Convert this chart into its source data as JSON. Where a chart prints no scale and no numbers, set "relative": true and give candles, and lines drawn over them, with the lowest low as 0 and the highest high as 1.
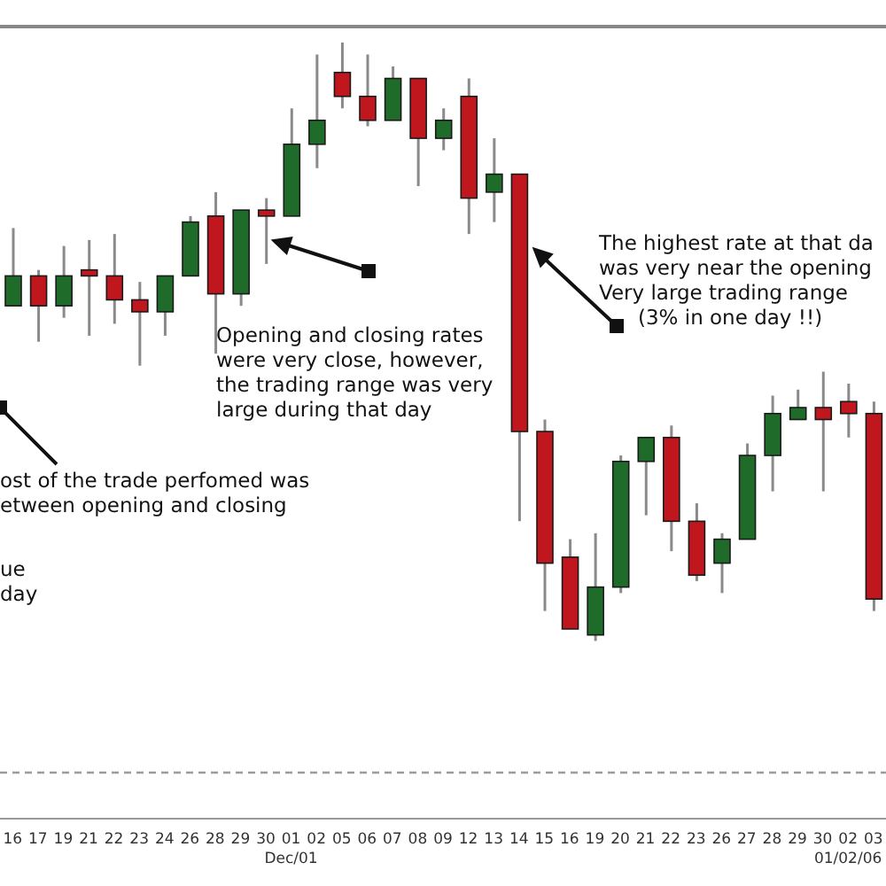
{
  "chart_data": {
    "type": "candlestick",
    "relative": true,
    "categories": [
      "16",
      "17",
      "19",
      "21",
      "22",
      "23",
      "24",
      "26",
      "28",
      "29",
      "30",
      "01",
      "02",
      "05",
      "06",
      "07",
      "08",
      "09",
      "12",
      "13",
      "14",
      "15",
      "16",
      "19",
      "20",
      "21",
      "22",
      "23",
      "26",
      "27",
      "28",
      "29",
      "30",
      "02",
      "03"
    ],
    "ohlc": [
      [
        0.56,
        0.69,
        0.56,
        0.61
      ],
      [
        0.61,
        0.62,
        0.5,
        0.56
      ],
      [
        0.56,
        0.66,
        0.54,
        0.61
      ],
      [
        0.62,
        0.67,
        0.51,
        0.61
      ],
      [
        0.61,
        0.68,
        0.53,
        0.57
      ],
      [
        0.57,
        0.6,
        0.46,
        0.55
      ],
      [
        0.55,
        0.61,
        0.51,
        0.61
      ],
      [
        0.61,
        0.71,
        0.61,
        0.7
      ],
      [
        0.71,
        0.75,
        0.48,
        0.58
      ],
      [
        0.58,
        0.72,
        0.56,
        0.72
      ],
      [
        0.72,
        0.74,
        0.63,
        0.71
      ],
      [
        0.71,
        0.89,
        0.71,
        0.83
      ],
      [
        0.83,
        0.98,
        0.79,
        0.87
      ],
      [
        0.95,
        1.0,
        0.89,
        0.91
      ],
      [
        0.91,
        0.98,
        0.86,
        0.87
      ],
      [
        0.87,
        0.96,
        0.87,
        0.94
      ],
      [
        0.94,
        0.94,
        0.76,
        0.84
      ],
      [
        0.84,
        0.89,
        0.82,
        0.87
      ],
      [
        0.91,
        0.94,
        0.68,
        0.74
      ],
      [
        0.75,
        0.84,
        0.7,
        0.78
      ],
      [
        0.78,
        0.78,
        0.2,
        0.35
      ],
      [
        0.35,
        0.37,
        0.05,
        0.13
      ],
      [
        0.14,
        0.17,
        0.02,
        0.02
      ],
      [
        0.01,
        0.18,
        0,
        0.09
      ],
      [
        0.09,
        0.31,
        0.08,
        0.3
      ],
      [
        0.3,
        0.34,
        0.21,
        0.34
      ],
      [
        0.34,
        0.36,
        0.15,
        0.2
      ],
      [
        0.2,
        0.23,
        0.1,
        0.11
      ],
      [
        0.13,
        0.18,
        0.08,
        0.17
      ],
      [
        0.17,
        0.33,
        0.17,
        0.31
      ],
      [
        0.31,
        0.41,
        0.25,
        0.38
      ],
      [
        0.37,
        0.42,
        0.37,
        0.39
      ],
      [
        0.39,
        0.45,
        0.25,
        0.37
      ],
      [
        0.4,
        0.43,
        0.34,
        0.38
      ],
      [
        0.38,
        0.4,
        0.05,
        0.07
      ]
    ],
    "colors": [
      "#1e6b2a",
      "#c0161e",
      "#1e6b2a",
      "#c0161e",
      "#c0161e",
      "#c0161e",
      "#1e6b2a",
      "#1e6b2a",
      "#c0161e",
      "#1e6b2a",
      "#c0161e",
      "#1e6b2a",
      "#1e6b2a",
      "#c0161e",
      "#c0161e",
      "#1e6b2a",
      "#c0161e",
      "#1e6b2a",
      "#c0161e",
      "#1e6b2a",
      "#c0161e",
      "#c0161e",
      "#c0161e",
      "#1e6b2a",
      "#1e6b2a",
      "#1e6b2a",
      "#c0161e",
      "#c0161e",
      "#1e6b2a",
      "#1e6b2a",
      "#1e6b2a",
      "#1e6b2a",
      "#c0161e",
      "#c0161e",
      "#c0161e"
    ],
    "ref_lines": [
      {
        "axis": "y",
        "value": -0.22,
        "color": "#9a9a9a",
        "line_style": "dashed"
      }
    ],
    "annotations": [
      "Opening and closing rates\nwere very close, however,\nthe trading range was very\nlarge during that day",
      "The highest rate at that da\nwas very near the opening\nVery large trading range\n(3% in one day !!)",
      "ost of the trade perfomed was\netween opening and closing",
      "ue\nday",
      "Dec/01",
      "01/02/06"
    ],
    "grid": false,
    "legend": false
  }
}
